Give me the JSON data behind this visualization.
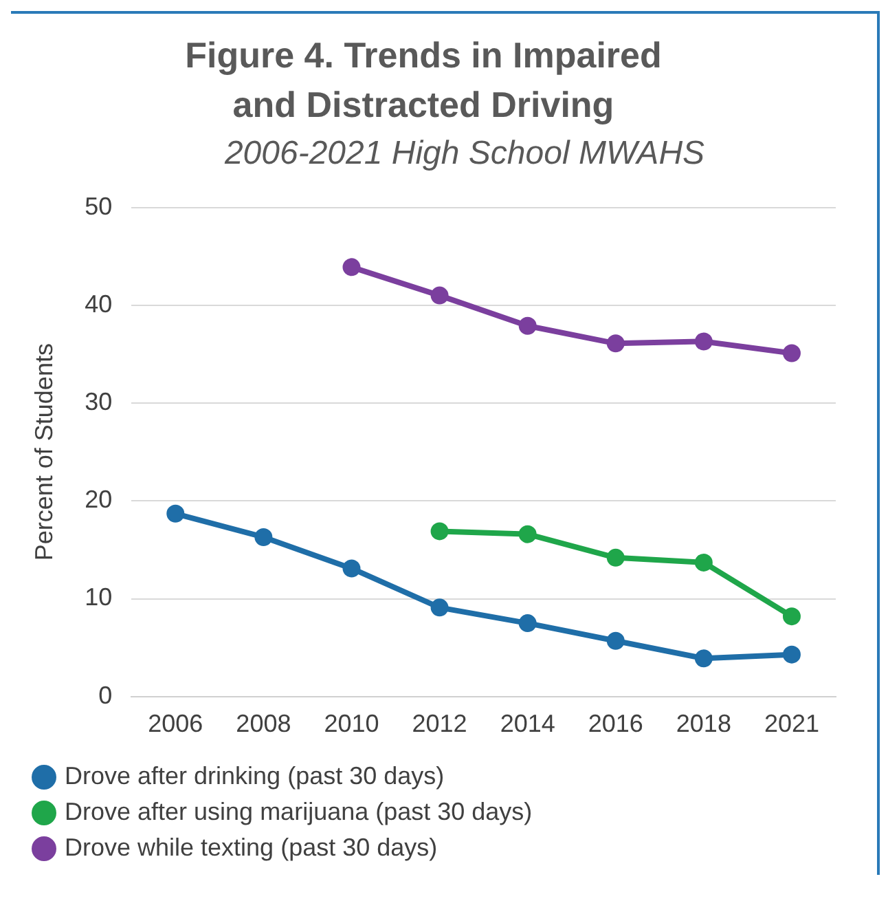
{
  "chart_data": {
    "type": "line",
    "title": "Figure 4. Trends in Impaired and Distracted Driving",
    "subtitle": "2006-2021 High School MWAHS",
    "ylabel": "Percent of Students",
    "categories": [
      "2006",
      "2008",
      "2010",
      "2012",
      "2014",
      "2016",
      "2018",
      "2021"
    ],
    "series": [
      {
        "name": "Drove after drinking (past 30 days)",
        "color": "#1f6ea8",
        "values": [
          18.7,
          16.3,
          13.1,
          9.1,
          7.5,
          5.7,
          3.9,
          4.3
        ]
      },
      {
        "name": "Drove after using marijuana (past 30 days)",
        "color": "#1fa64a",
        "values": [
          null,
          null,
          null,
          16.9,
          16.6,
          14.2,
          13.7,
          8.2
        ]
      },
      {
        "name": "Drove while texting (past 30 days)",
        "color": "#7b3f9e",
        "values": [
          null,
          null,
          43.9,
          41.0,
          37.9,
          36.1,
          36.3,
          35.1
        ]
      }
    ],
    "ylim": [
      0,
      50
    ],
    "yticks": [
      0,
      10,
      20,
      30,
      40,
      50
    ],
    "grid": "y",
    "legend": "bottom",
    "marker": "circle",
    "line_style": "solid"
  }
}
